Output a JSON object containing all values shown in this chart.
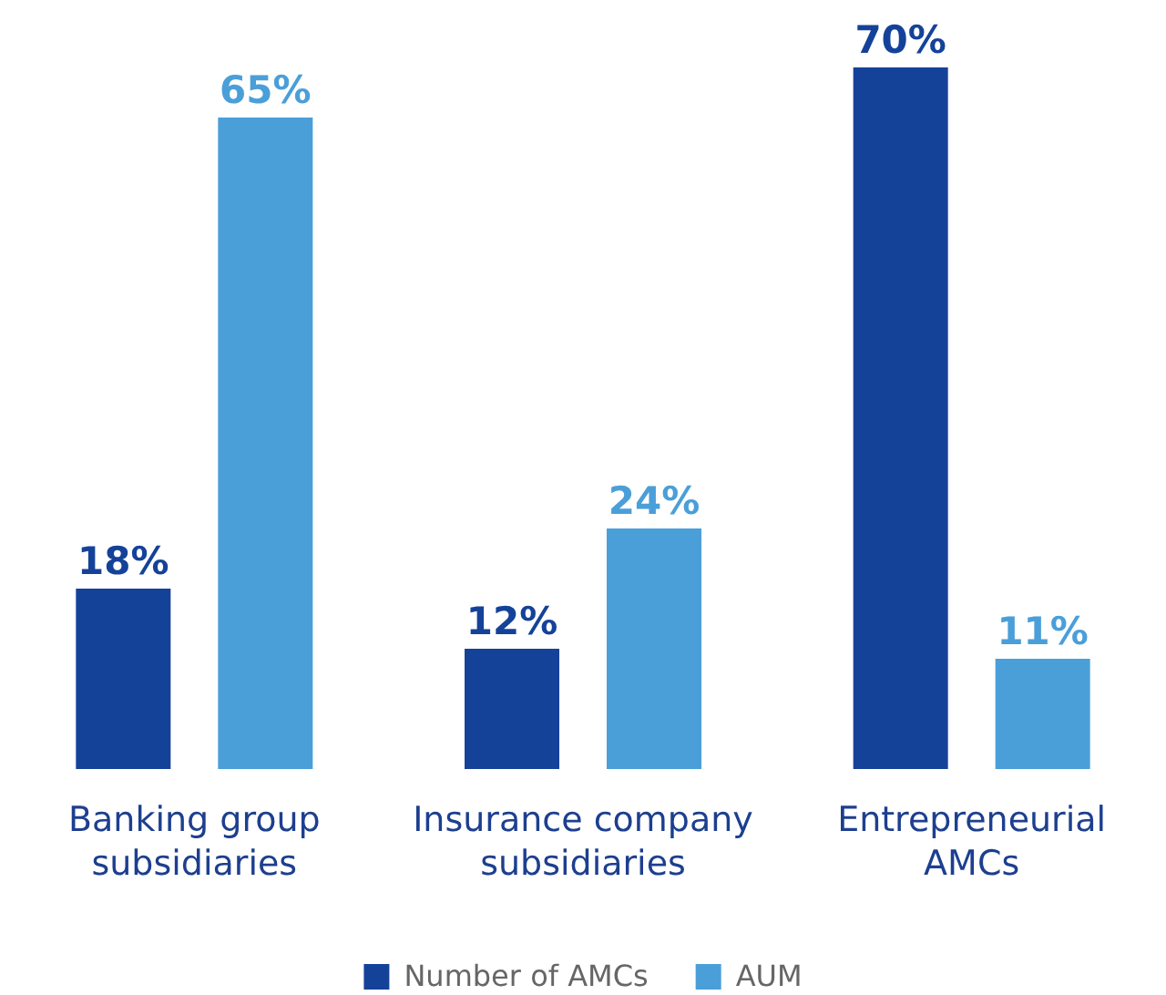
{
  "chart_data": {
    "type": "bar",
    "categories": [
      "Banking group subsidiaries",
      "Insurance company subsidiaries",
      "Entrepreneurial AMCs"
    ],
    "series": [
      {
        "name": "Number of AMCs",
        "color": "#154299",
        "values": [
          18,
          12,
          70
        ],
        "value_labels": [
          "18%",
          "12%",
          "70%"
        ]
      },
      {
        "name": "AUM",
        "color": "#4a9fd9",
        "values": [
          65,
          24,
          11
        ],
        "value_labels": [
          "65%",
          "24%",
          "11%"
        ]
      }
    ],
    "relative": false,
    "legend": "bottom"
  }
}
